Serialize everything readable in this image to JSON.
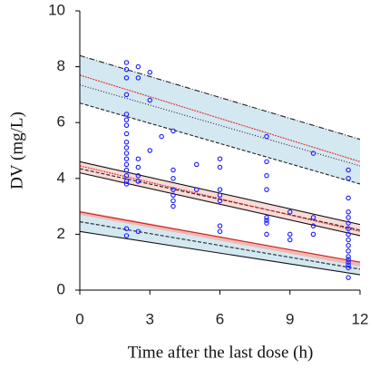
{
  "chart_data": {
    "type": "vpc",
    "x_label": "Time after the last dose (h)",
    "y_label": "DV (mg/L)",
    "xlim": [
      0,
      12
    ],
    "xticks": [
      0,
      3,
      6,
      9,
      12
    ],
    "ylim": [
      0,
      10
    ],
    "yticks": [
      0,
      2,
      4,
      6,
      8,
      10
    ],
    "bands": [
      {
        "x": [
          0,
          12
        ],
        "lower": [
          6.7,
          3.8
        ],
        "upper": [
          8.4,
          5.4
        ],
        "color": "#d3e8f1"
      },
      {
        "x": [
          0,
          12
        ],
        "lower": [
          4.2,
          1.95
        ],
        "upper": [
          4.6,
          2.35
        ],
        "color": "#f8dcd8"
      },
      {
        "x": [
          0,
          12
        ],
        "lower": [
          2.1,
          0.55
        ],
        "upper": [
          2.8,
          1.0
        ],
        "color": "#d3e8f1"
      },
      {
        "x": [
          0,
          12
        ],
        "lower": [
          2.7,
          0.85
        ],
        "upper": [
          2.85,
          1.0
        ],
        "color": "#f3b8b0"
      }
    ],
    "lines": [
      {
        "x": [
          0,
          12
        ],
        "values": [
          8.4,
          5.4
        ],
        "color": "#222222",
        "dash": "6 2 1 2"
      },
      {
        "x": [
          0,
          12
        ],
        "values": [
          6.7,
          3.8
        ],
        "color": "#222222",
        "dash": "4 2"
      },
      {
        "x": [
          0,
          12
        ],
        "values": [
          7.35,
          4.45
        ],
        "color": "#222222",
        "dash": "1 2"
      },
      {
        "x": [
          0,
          12
        ],
        "values": [
          7.7,
          4.6
        ],
        "color": "#e03030",
        "dash": "2 1"
      },
      {
        "x": [
          0,
          12
        ],
        "values": [
          4.6,
          2.35
        ],
        "color": "#111111",
        "dash": "none"
      },
      {
        "x": [
          0,
          12
        ],
        "values": [
          4.2,
          1.95
        ],
        "color": "#111111",
        "dash": "none"
      },
      {
        "x": [
          0,
          12
        ],
        "values": [
          4.35,
          2.15
        ],
        "color": "#222222",
        "dash": "4 2"
      },
      {
        "x": [
          0,
          12
        ],
        "values": [
          4.45,
          2.1
        ],
        "color": "#e03030",
        "dash": "2 1"
      },
      {
        "x": [
          0,
          12
        ],
        "values": [
          2.8,
          1.0
        ],
        "color": "#c02020",
        "dash": "none"
      },
      {
        "x": [
          0,
          12
        ],
        "values": [
          2.45,
          0.75
        ],
        "color": "#222222",
        "dash": "4 2"
      },
      {
        "x": [
          0,
          12
        ],
        "values": [
          2.1,
          0.55
        ],
        "color": "#111111",
        "dash": "none"
      }
    ],
    "points": {
      "color": "#1a1aff",
      "x": [
        2,
        2,
        2,
        2,
        2,
        2,
        2,
        2,
        2,
        2,
        2,
        2,
        2,
        2,
        2,
        2,
        2,
        2,
        2,
        2.5,
        2.5,
        2.5,
        2.5,
        2.5,
        2.5,
        2.5,
        3,
        3,
        3,
        3.5,
        4,
        4,
        4,
        4,
        4,
        4,
        4,
        5,
        5,
        6,
        6,
        6,
        6,
        6,
        6,
        6,
        8,
        8,
        8,
        8,
        8,
        8,
        8,
        8,
        9,
        9,
        9,
        10,
        10,
        10,
        10,
        11.5,
        11.5,
        11.5,
        11.5,
        11.5,
        11.5,
        11.5,
        11.5,
        11.5,
        11.5,
        11.5,
        11.5,
        11.5,
        11.5,
        11.5,
        11.5,
        11.5
      ],
      "values": [
        8.15,
        7.9,
        7.6,
        7.0,
        6.3,
        6.1,
        5.9,
        5.6,
        5.3,
        5.1,
        4.9,
        4.7,
        4.5,
        4.3,
        4.1,
        3.9,
        3.8,
        2.2,
        1.95,
        8.0,
        7.6,
        4.7,
        4.4,
        4.1,
        3.9,
        2.1,
        7.8,
        6.8,
        5.0,
        5.5,
        5.7,
        4.3,
        4.0,
        3.6,
        3.4,
        3.2,
        3.0,
        4.5,
        3.6,
        4.7,
        4.4,
        3.6,
        3.4,
        3.2,
        2.3,
        2.1,
        5.5,
        4.6,
        4.1,
        3.6,
        2.6,
        2.5,
        2.4,
        2.0,
        2.8,
        2.0,
        1.8,
        4.9,
        2.6,
        2.3,
        2.0,
        4.3,
        4.0,
        3.3,
        2.8,
        2.6,
        2.4,
        2.2,
        2.0,
        1.8,
        1.6,
        1.4,
        1.2,
        1.1,
        1.0,
        0.9,
        0.8,
        0.45
      ]
    }
  }
}
